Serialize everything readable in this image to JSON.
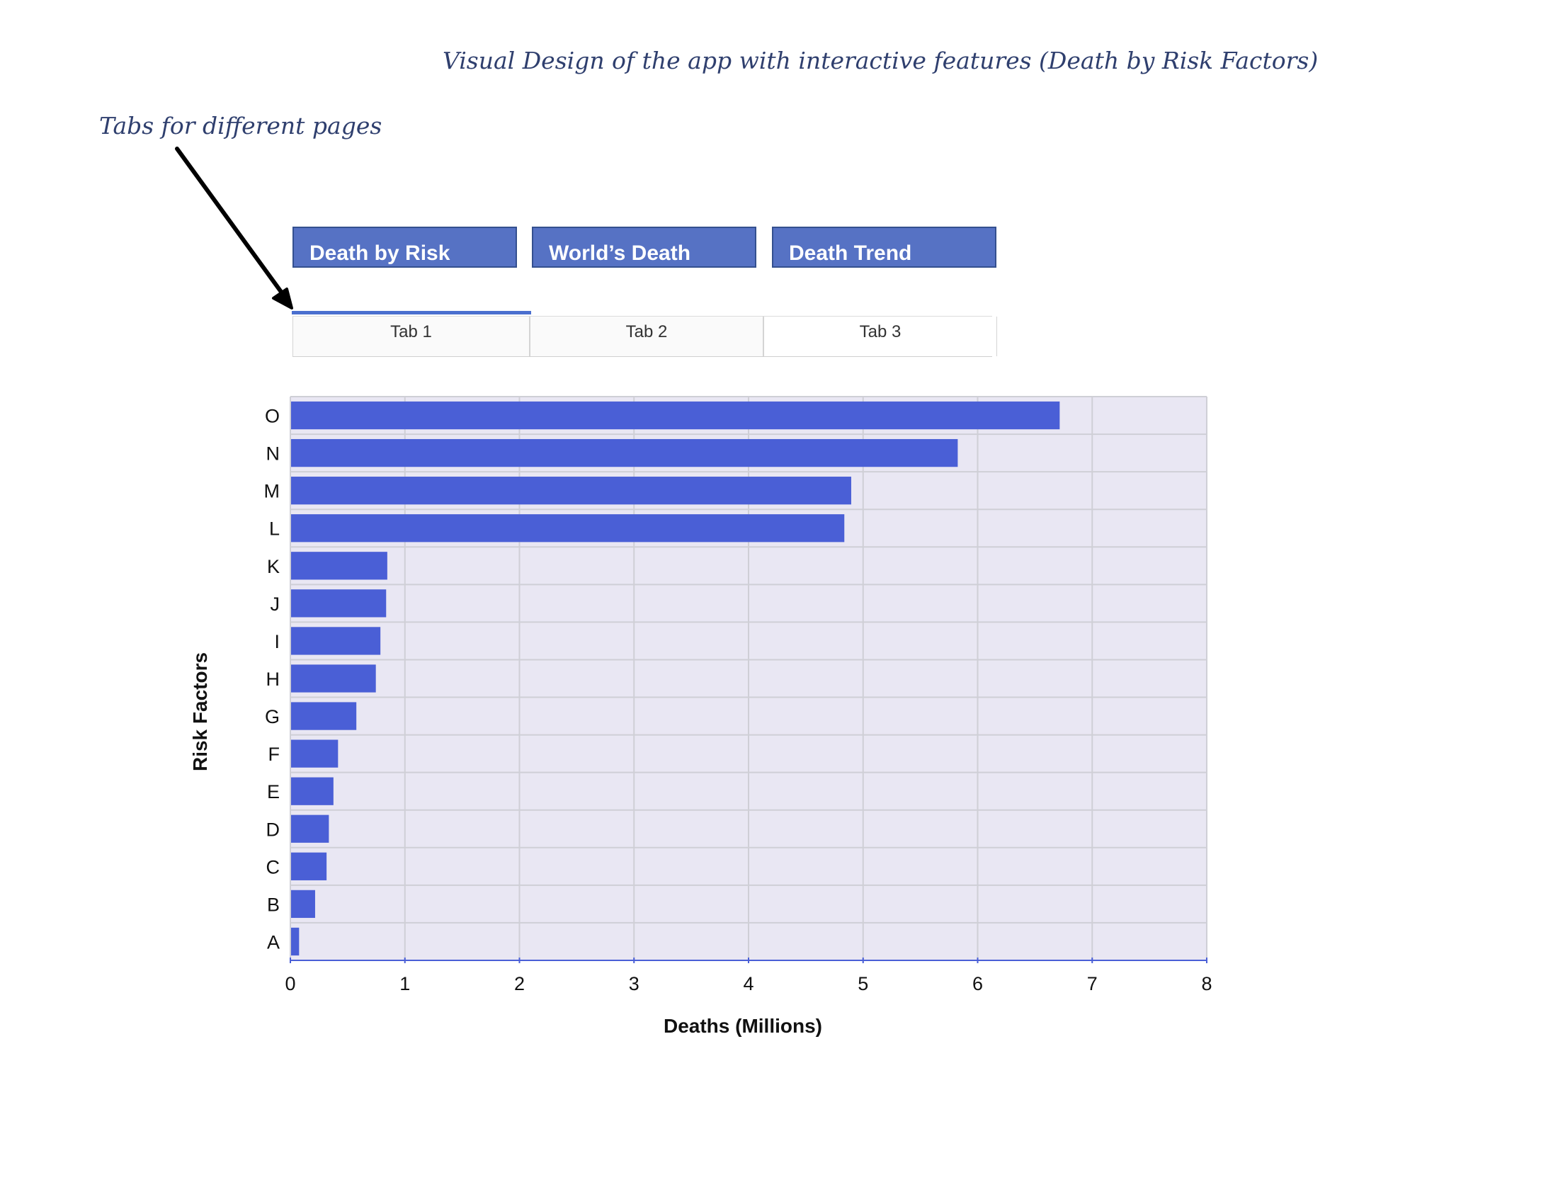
{
  "page": {
    "title": "Visual Design of the app with interactive features (Death by Risk Factors)",
    "annotation": "Tabs for different pages"
  },
  "nav_buttons": [
    {
      "label": "Death by Risk"
    },
    {
      "label": "World’s Death"
    },
    {
      "label": "Death Trend"
    }
  ],
  "tabs": [
    {
      "label": "Tab 1",
      "active": true
    },
    {
      "label": "Tab 2",
      "active": false
    },
    {
      "label": "Tab 3",
      "active": false
    }
  ],
  "colors": {
    "accent": "#4a5fd6",
    "button": "#5672c4",
    "plot_background": "#e9e7f3",
    "grid": "#cfcfd6",
    "annotation_text": "#2f3f6e"
  },
  "chart_data": {
    "type": "bar",
    "orientation": "horizontal",
    "title": "",
    "xlabel": "Deaths (Millions)",
    "ylabel": "Risk Factors",
    "categories": [
      "A",
      "B",
      "C",
      "D",
      "E",
      "F",
      "G",
      "H",
      "I",
      "J",
      "K",
      "L",
      "M",
      "N",
      "O"
    ],
    "values": [
      0.07,
      0.21,
      0.31,
      0.33,
      0.37,
      0.41,
      0.57,
      0.74,
      0.78,
      0.83,
      0.84,
      4.83,
      4.89,
      5.82,
      6.71
    ],
    "xlim": [
      0,
      8
    ],
    "xticks": [
      "0",
      "1",
      "2",
      "3",
      "4",
      "5",
      "6",
      "7",
      "8"
    ],
    "grid": true,
    "legend": "none"
  }
}
